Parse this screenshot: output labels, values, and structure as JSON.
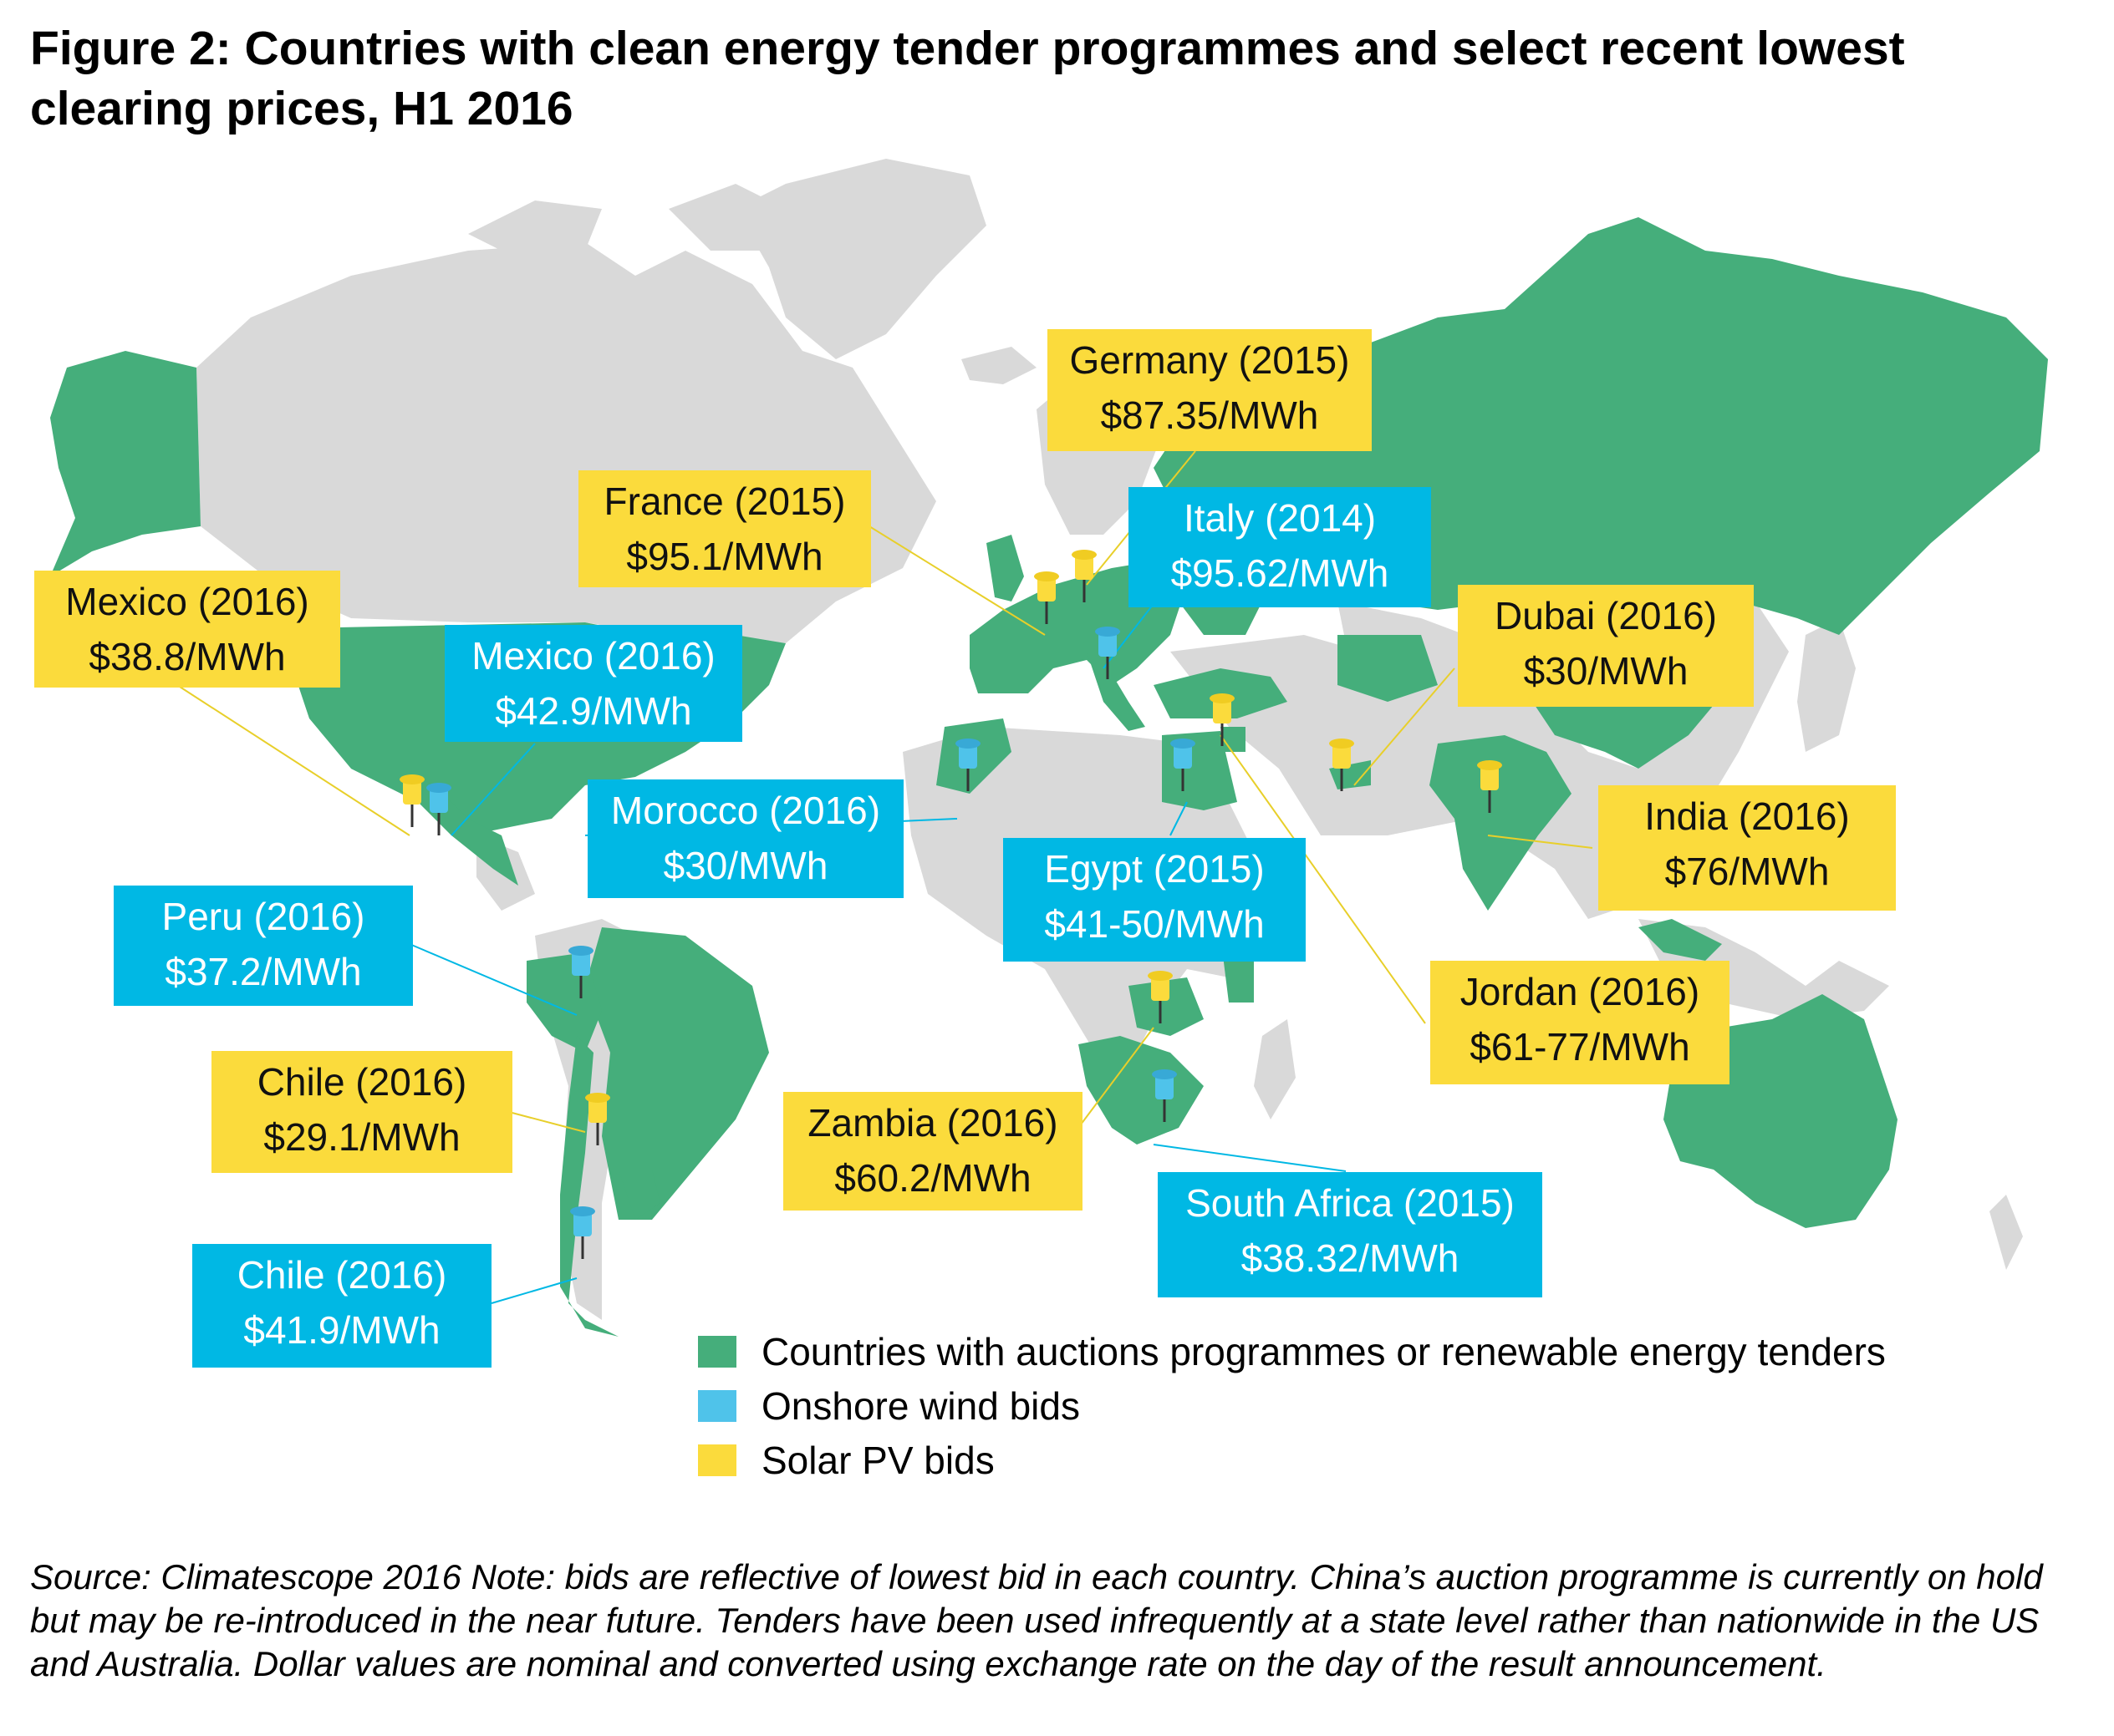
{
  "title": "Figure 2: Countries with clean energy tender programmes and select recent lowest clearing prices, H1 2016",
  "colors": {
    "programme_country": "#45ae7b",
    "other_land": "#d9d9d9",
    "onshore_wind": "#00b8e4",
    "solar_pv": "#fbdb3c",
    "leader_line": "#e8cf2a"
  },
  "callouts": [
    {
      "id": "mexico-solar",
      "type": "solar",
      "line1": "Mexico (2016)",
      "line2": "$38.8/MWh"
    },
    {
      "id": "mexico-wind",
      "type": "wind",
      "line1": "Mexico (2016)",
      "line2": "$42.9/MWh"
    },
    {
      "id": "france",
      "type": "solar",
      "line1": "France (2015)",
      "line2": "$95.1/MWh"
    },
    {
      "id": "germany",
      "type": "solar",
      "line1": "Germany (2015)",
      "line2": "$87.35/MWh"
    },
    {
      "id": "italy",
      "type": "wind",
      "line1": "Italy (2014)",
      "line2": "$95.62/MWh"
    },
    {
      "id": "dubai",
      "type": "solar",
      "line1": "Dubai (2016)",
      "line2": "$30/MWh"
    },
    {
      "id": "morocco",
      "type": "wind",
      "line1": "Morocco (2016)",
      "line2": "$30/MWh"
    },
    {
      "id": "egypt",
      "type": "wind",
      "line1": "Egypt (2015)",
      "line2": "$41-50/MWh"
    },
    {
      "id": "india",
      "type": "solar",
      "line1": "India (2016)",
      "line2": "$76/MWh"
    },
    {
      "id": "peru",
      "type": "wind",
      "line1": "Peru (2016)",
      "line2": "$37.2/MWh"
    },
    {
      "id": "jordan",
      "type": "solar",
      "line1": "Jordan (2016)",
      "line2": "$61-77/MWh"
    },
    {
      "id": "chile-solar",
      "type": "solar",
      "line1": "Chile (2016)",
      "line2": "$29.1/MWh"
    },
    {
      "id": "zambia",
      "type": "solar",
      "line1": "Zambia (2016)",
      "line2": "$60.2/MWh"
    },
    {
      "id": "south-africa",
      "type": "wind",
      "line1": "South Africa (2015)",
      "line2": "$38.32/MWh"
    },
    {
      "id": "chile-wind",
      "type": "wind",
      "line1": "Chile (2016)",
      "line2": "$41.9/MWh"
    }
  ],
  "legend": [
    {
      "label": "Countries with auctions programmes or renewable energy tenders",
      "color": "#45ae7b"
    },
    {
      "label": "Onshore wind bids",
      "color": "#4fc3ea"
    },
    {
      "label": "Solar PV bids",
      "color": "#fbdb3c"
    }
  ],
  "source": "Source: Climatescope 2016 Note: bids are reflective of lowest bid in each country. China’s auction programme is currently on hold but may be re-introduced in the near future. Tenders have been used infrequently at a state level rather than nationwide in the US and Australia. Dollar values are nominal and converted using exchange rate on the day of the result announcement."
}
